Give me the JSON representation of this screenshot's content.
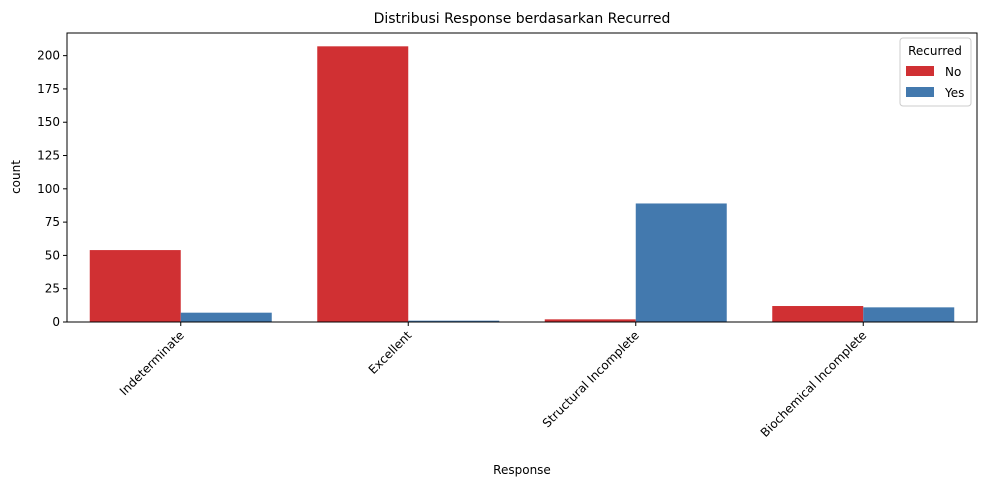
{
  "chart_data": {
    "type": "bar",
    "title": "Distribusi Response berdasarkan Recurred",
    "xlabel": "Response",
    "ylabel": "count",
    "categories": [
      "Indeterminate",
      "Excellent",
      "Structural Incomplete",
      "Biochemical Incomplete"
    ],
    "series": [
      {
        "name": "No",
        "color": "#d03033",
        "values": [
          54,
          207,
          2,
          12
        ]
      },
      {
        "name": "Yes",
        "color": "#4379ae",
        "values": [
          7,
          1,
          89,
          11
        ]
      }
    ],
    "ylim": [
      0,
      217
    ],
    "yticks": [
      0,
      25,
      50,
      75,
      100,
      125,
      150,
      175,
      200
    ],
    "grid": false,
    "legend": {
      "title": "Recurred",
      "placement": "top-right"
    }
  }
}
